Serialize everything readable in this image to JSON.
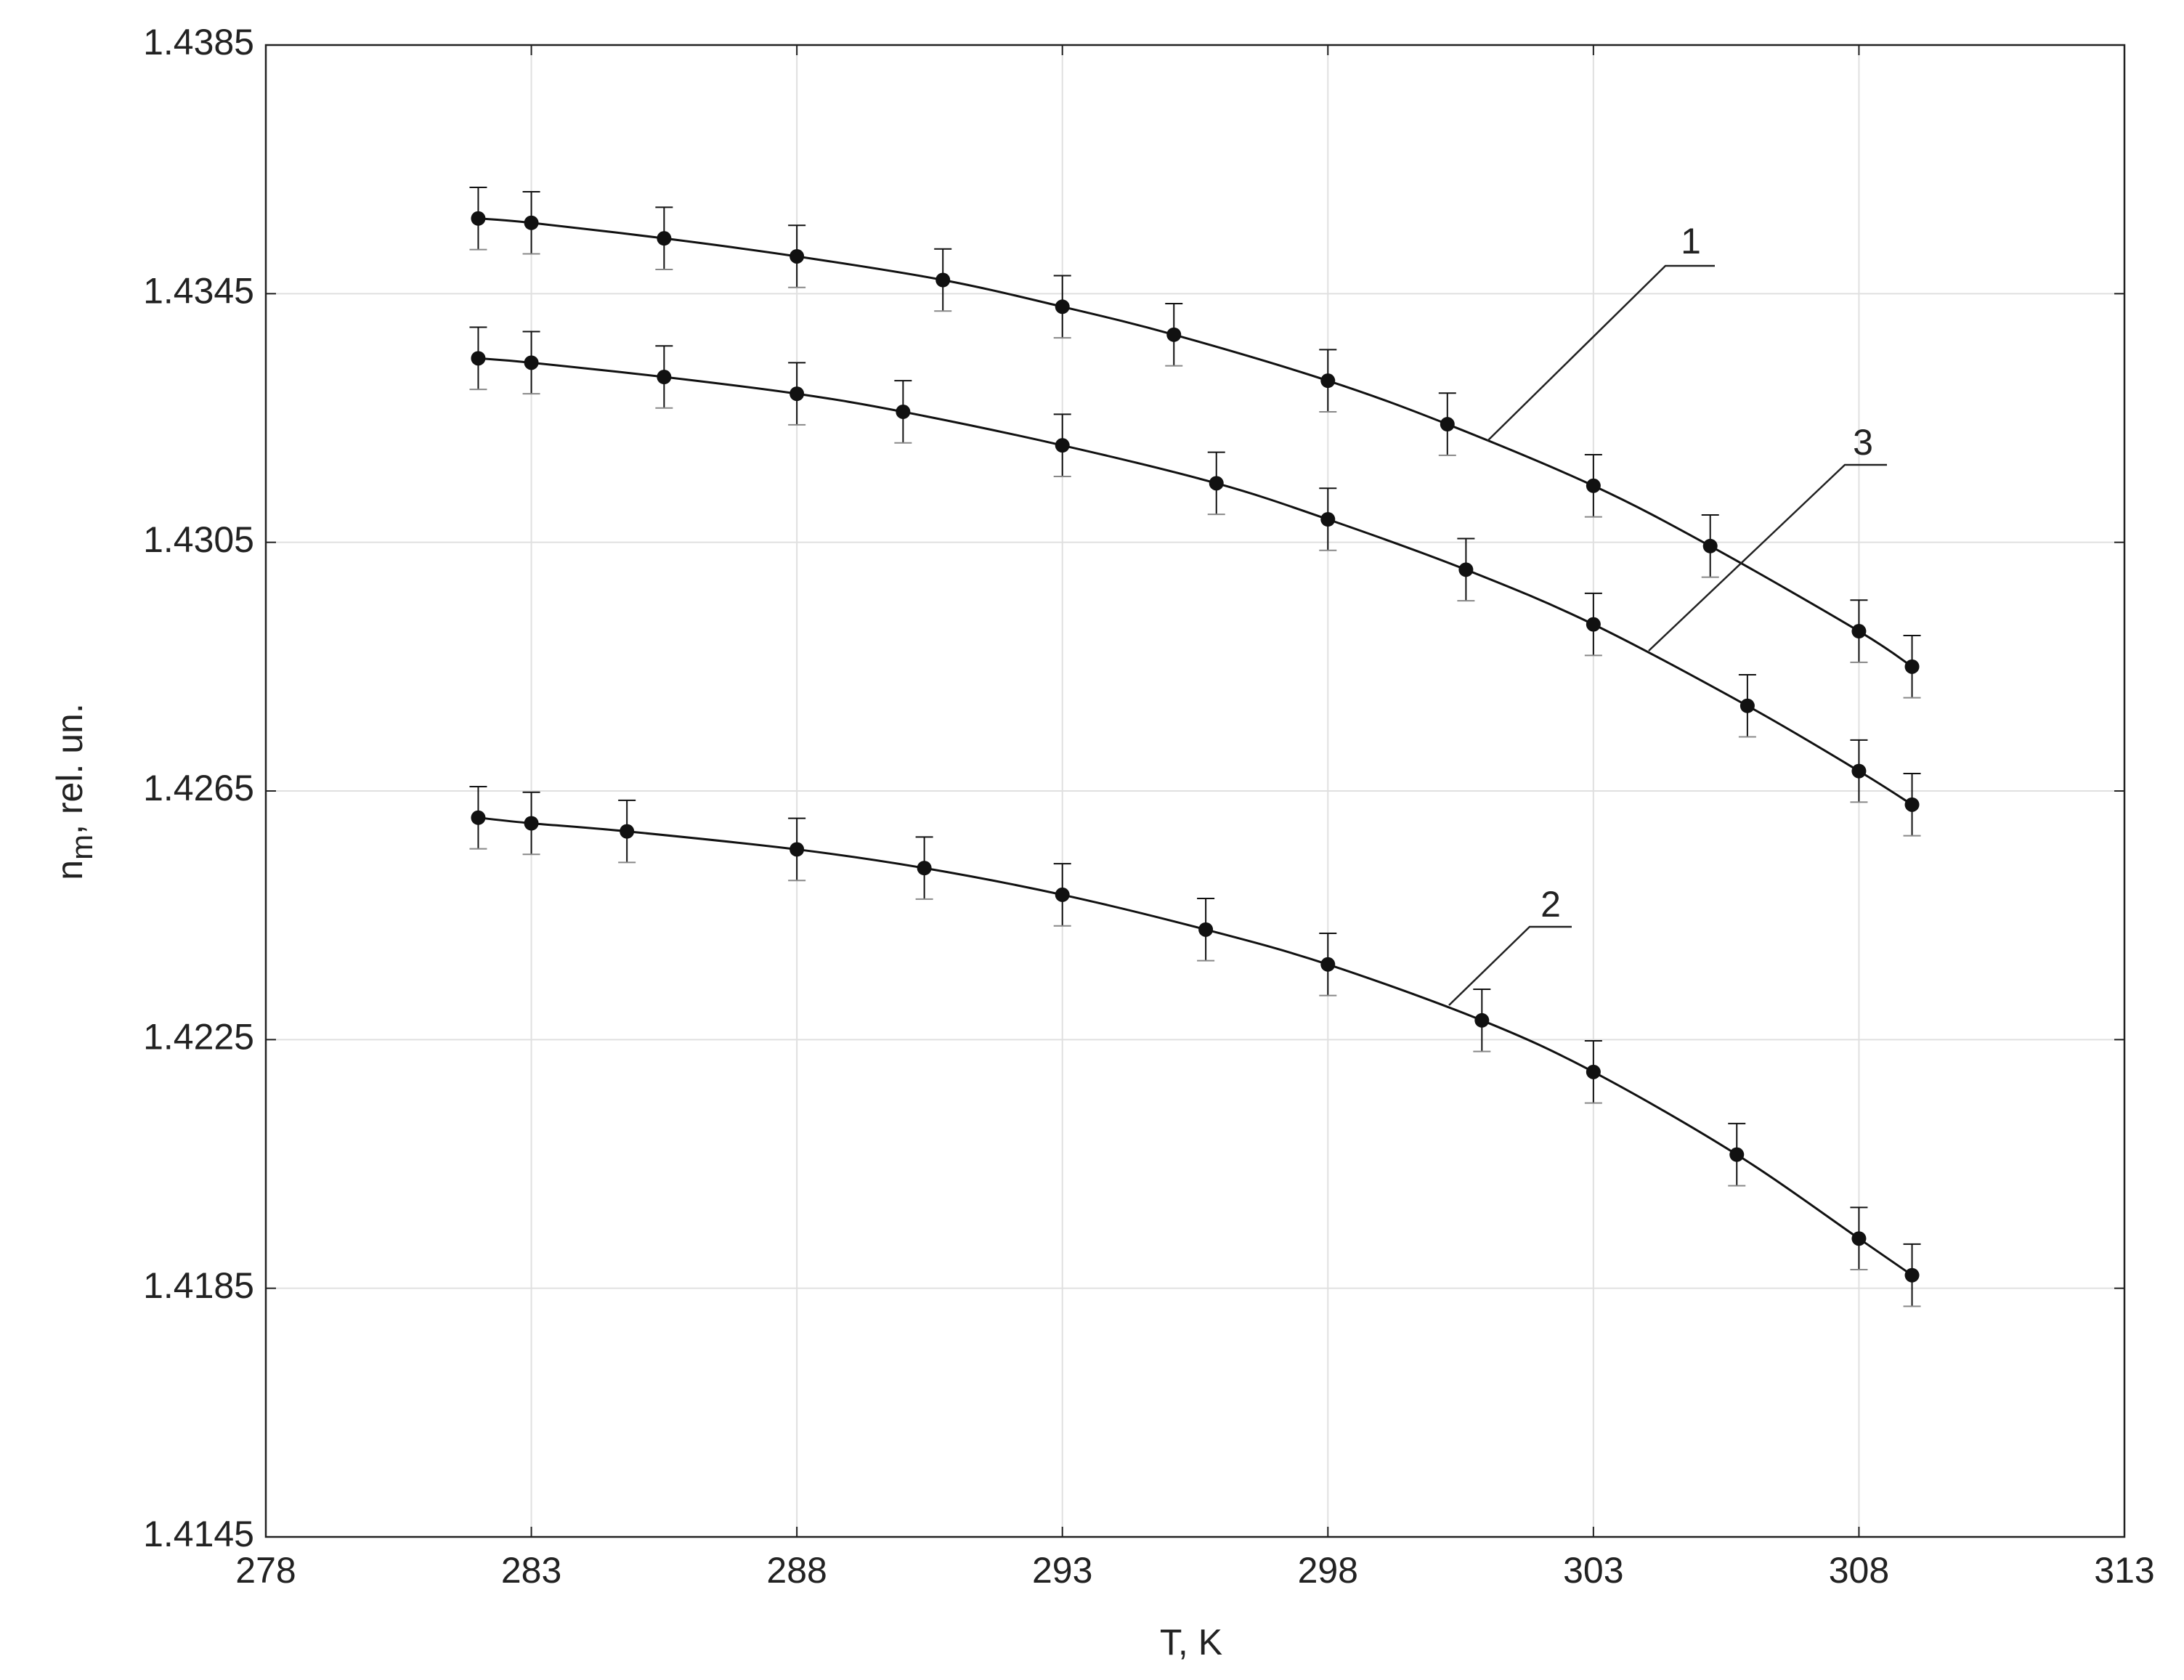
{
  "chart_data": {
    "type": "line",
    "x_label": "T, K",
    "y_label": "n",
    "y_label_sub": "m",
    "y_label_rest": ", rel. un.",
    "xlim": [
      278,
      313
    ],
    "xticks": [
      278,
      283,
      288,
      293,
      298,
      303,
      308,
      313
    ],
    "ylim": [
      1.4145,
      1.4385
    ],
    "yticks": [
      1.4145,
      1.4185,
      1.4225,
      1.4265,
      1.4305,
      1.4345,
      1.4385
    ],
    "grid": true,
    "series": [
      {
        "name": "1",
        "color": "#111111",
        "error": 0.0005,
        "x": [
          282,
          283,
          285.5,
          288,
          290.75,
          293,
          295.1,
          298,
          300.25,
          303,
          305.2,
          308,
          309
        ],
        "values": [
          1.43571,
          1.43564,
          1.43539,
          1.4351,
          1.43472,
          1.43429,
          1.43384,
          1.4331,
          1.4324,
          1.43141,
          1.43044,
          1.42907,
          1.4285
        ]
      },
      {
        "name": "2",
        "color": "#111111",
        "error": 0.0005,
        "x": [
          282,
          283,
          284.8,
          288,
          290.4,
          293,
          295.7,
          298,
          300.9,
          303,
          305.7,
          308,
          309
        ],
        "values": [
          1.42607,
          1.42598,
          1.42585,
          1.42556,
          1.42526,
          1.42483,
          1.42427,
          1.42371,
          1.42281,
          1.42198,
          1.42065,
          1.4193,
          1.41871
        ]
      },
      {
        "name": "3",
        "color": "#111111",
        "error": 0.0005,
        "x": [
          282,
          283,
          285.5,
          288,
          290,
          293,
          295.9,
          298,
          300.6,
          303,
          305.9,
          308,
          309
        ],
        "values": [
          1.43346,
          1.43339,
          1.43316,
          1.43289,
          1.4326,
          1.43206,
          1.43145,
          1.43087,
          1.43006,
          1.42918,
          1.42787,
          1.42682,
          1.42628
        ]
      }
    ]
  }
}
